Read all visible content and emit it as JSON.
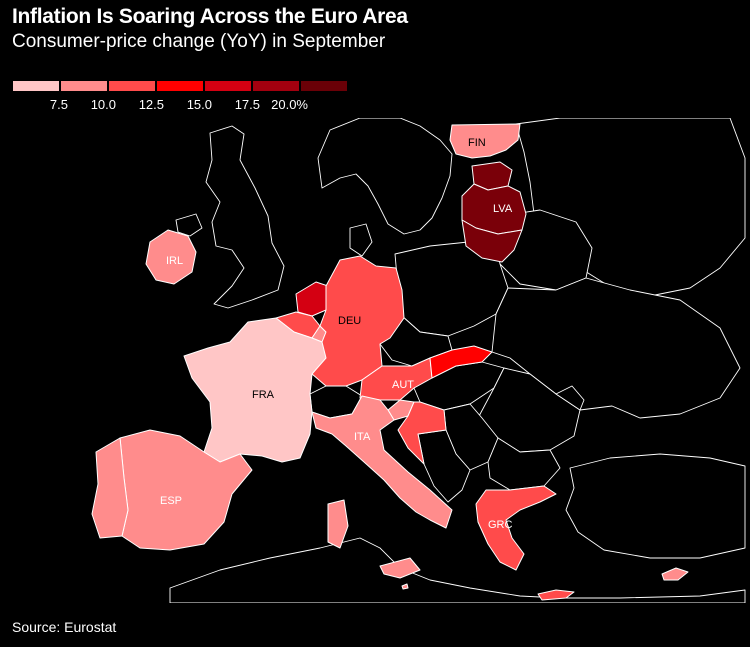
{
  "title": "Inflation Is Soaring Across the Euro Area",
  "subtitle": "Consumer-price change (YoY) in September",
  "legend": {
    "bins": [
      {
        "color": "#ffc6c6",
        "label": "7.5"
      },
      {
        "color": "#ff8c8c",
        "label": "10.0"
      },
      {
        "color": "#ff4b4b",
        "label": "12.5"
      },
      {
        "color": "#ff0000",
        "label": "15.0"
      },
      {
        "color": "#d40012",
        "label": "17.5"
      },
      {
        "color": "#a3000f",
        "label": "20.0%"
      },
      {
        "color": "#6a0007",
        "label": ""
      }
    ]
  },
  "map": {
    "region": "Euro area",
    "colors": {
      "non_member_fill": "#000000",
      "border_stroke": "#ffffff"
    },
    "labeled_countries": [
      {
        "code": "FIN",
        "color": "#ff8c8c"
      },
      {
        "code": "LVA",
        "color": "#7a0009"
      },
      {
        "code": "IRL",
        "color": "#ff8c8c"
      },
      {
        "code": "DEU",
        "color": "#ff4b4b"
      },
      {
        "code": "FRA",
        "color": "#ffc6c6"
      },
      {
        "code": "AUT",
        "color": "#ff4b4b"
      },
      {
        "code": "ITA",
        "color": "#ff8c8c"
      },
      {
        "code": "ESP",
        "color": "#ff8c8c"
      },
      {
        "code": "GRC",
        "color": "#ff4b4b"
      }
    ],
    "unlabeled_countries": [
      {
        "code": "PRT",
        "color": "#ff8c8c"
      },
      {
        "code": "BEL",
        "color": "#ff4b4b"
      },
      {
        "code": "NLD",
        "color": "#d40012"
      },
      {
        "code": "LUX",
        "color": "#ff8c8c"
      },
      {
        "code": "SVK",
        "color": "#ff0000"
      },
      {
        "code": "SVN",
        "color": "#ff8c8c"
      },
      {
        "code": "HRV",
        "color": "#ff4b4b"
      },
      {
        "code": "EST",
        "color": "#7a0009"
      },
      {
        "code": "LTU",
        "color": "#7a0009"
      },
      {
        "code": "CYP",
        "color": "#ff8c8c"
      },
      {
        "code": "MLT",
        "color": "#ff8c8c"
      }
    ]
  },
  "source": "Source: Eurostat"
}
